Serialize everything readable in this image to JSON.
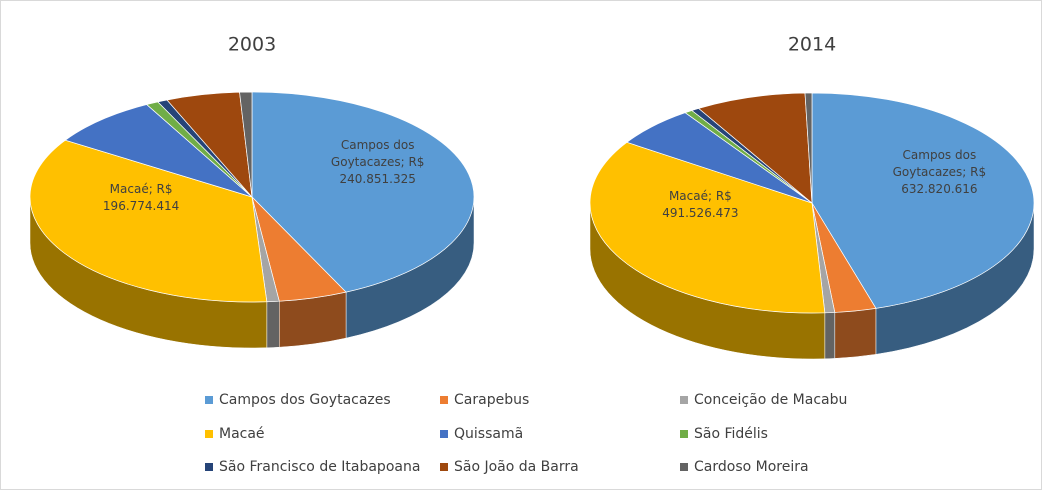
{
  "chart_data": [
    {
      "type": "pie",
      "title": "2003",
      "categories": [
        "Campos dos Goytacazes",
        "Carapebus",
        "Conceição de Macabu",
        "Macaé",
        "Quissamã",
        "São Fidélis",
        "São Francisco de Itabapoana",
        "São João da Barra",
        "Cardoso Moreira"
      ],
      "values": [
        240851325,
        28000000,
        5000000,
        196774414,
        45000000,
        5000000,
        4000000,
        30000000,
        5000000
      ],
      "value_labels": [
        "Campos dos Goytacazes; R$ 240.851.325",
        null,
        null,
        "Macaé; R$ 196.774.414",
        null,
        null,
        null,
        null,
        null
      ],
      "colors": [
        "#5b9bd5",
        "#ed7d31",
        "#a5a5a5",
        "#ffc000",
        "#4472c4",
        "#70ad47",
        "#264478",
        "#9e480e",
        "#636363"
      ]
    },
    {
      "type": "pie",
      "title": "2014",
      "categories": [
        "Campos dos Goytacazes",
        "Carapebus",
        "Conceição de Macabu",
        "Macaé",
        "Quissamã",
        "São Fidélis",
        "São Francisco de Itabapoana",
        "São João da Barra",
        "Cardoso Moreira"
      ],
      "values": [
        632820616,
        42000000,
        10000000,
        491526473,
        84000000,
        8000000,
        8000000,
        112000000,
        7000000
      ],
      "value_labels": [
        "Campos dos Goytacazes; R$ 632.820.616",
        null,
        null,
        "Macaé; R$ 491.526.473",
        null,
        null,
        null,
        null,
        null
      ],
      "colors": [
        "#5b9bd5",
        "#ed7d31",
        "#a5a5a5",
        "#ffc000",
        "#4472c4",
        "#70ad47",
        "#264478",
        "#9e480e",
        "#636363"
      ]
    }
  ]
}
